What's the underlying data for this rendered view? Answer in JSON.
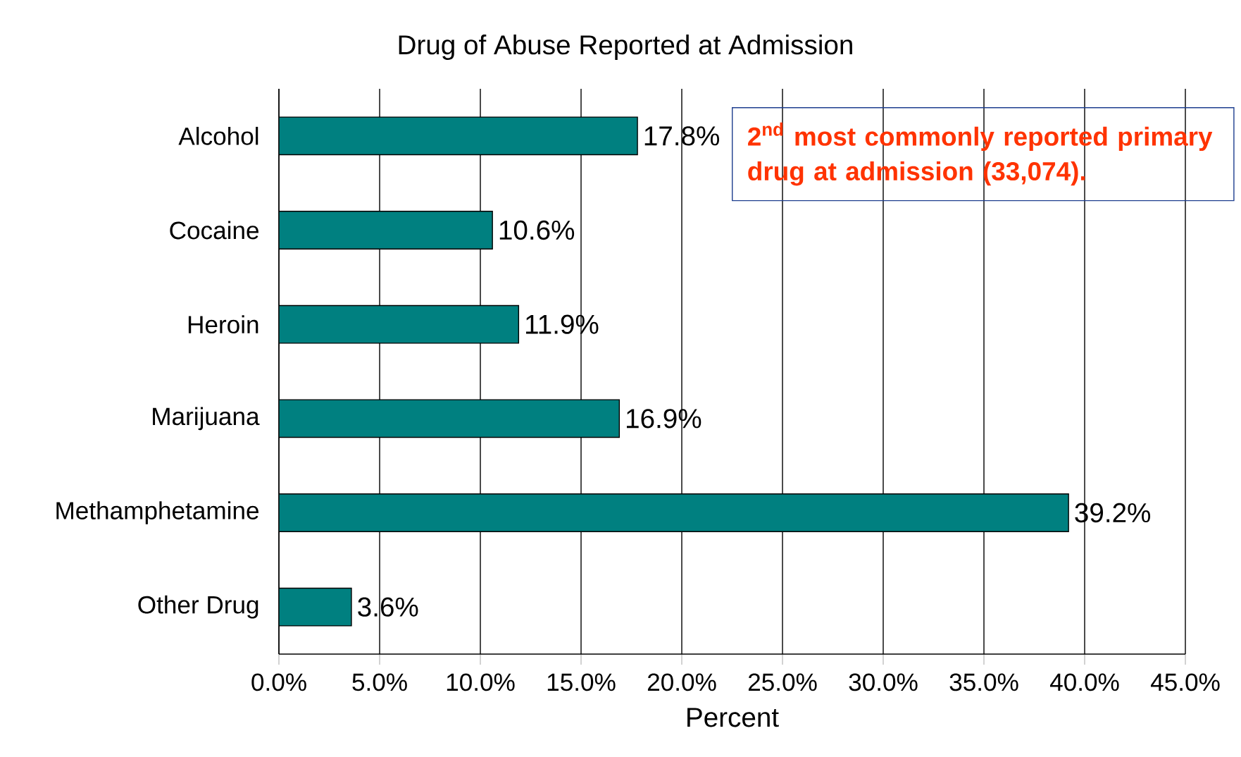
{
  "chart_data": {
    "type": "bar",
    "orientation": "horizontal",
    "title": "Drug of Abuse Reported at Admission",
    "xlabel": "Percent",
    "categories": [
      "Alcohol",
      "Cocaine",
      "Heroin",
      "Marijuana",
      "Methamphetamine",
      "Other Drug"
    ],
    "values": [
      17.8,
      10.6,
      11.9,
      16.9,
      39.2,
      3.6
    ],
    "value_labels": [
      "17.8%",
      "10.6%",
      "11.9%",
      "16.9%",
      "39.2%",
      "3.6%"
    ],
    "color": "#008080",
    "xlim": [
      0,
      45
    ],
    "xticks": [
      {
        "value": 0,
        "label": "0.0%"
      },
      {
        "value": 5,
        "label": "5.0%"
      },
      {
        "value": 10,
        "label": "10.0%"
      },
      {
        "value": 15,
        "label": "15.0%"
      },
      {
        "value": 20,
        "label": "20.0%"
      },
      {
        "value": 25,
        "label": "25.0%"
      },
      {
        "value": 30,
        "label": "30.0%"
      },
      {
        "value": 35,
        "label": "35.0%"
      },
      {
        "value": 40,
        "label": "40.0%"
      },
      {
        "value": 45,
        "label": "45.0%"
      }
    ],
    "grid": "x",
    "annotations": [
      "2$^{nd}$ most commonly reported primary drug at admission (33,074)."
    ]
  }
}
